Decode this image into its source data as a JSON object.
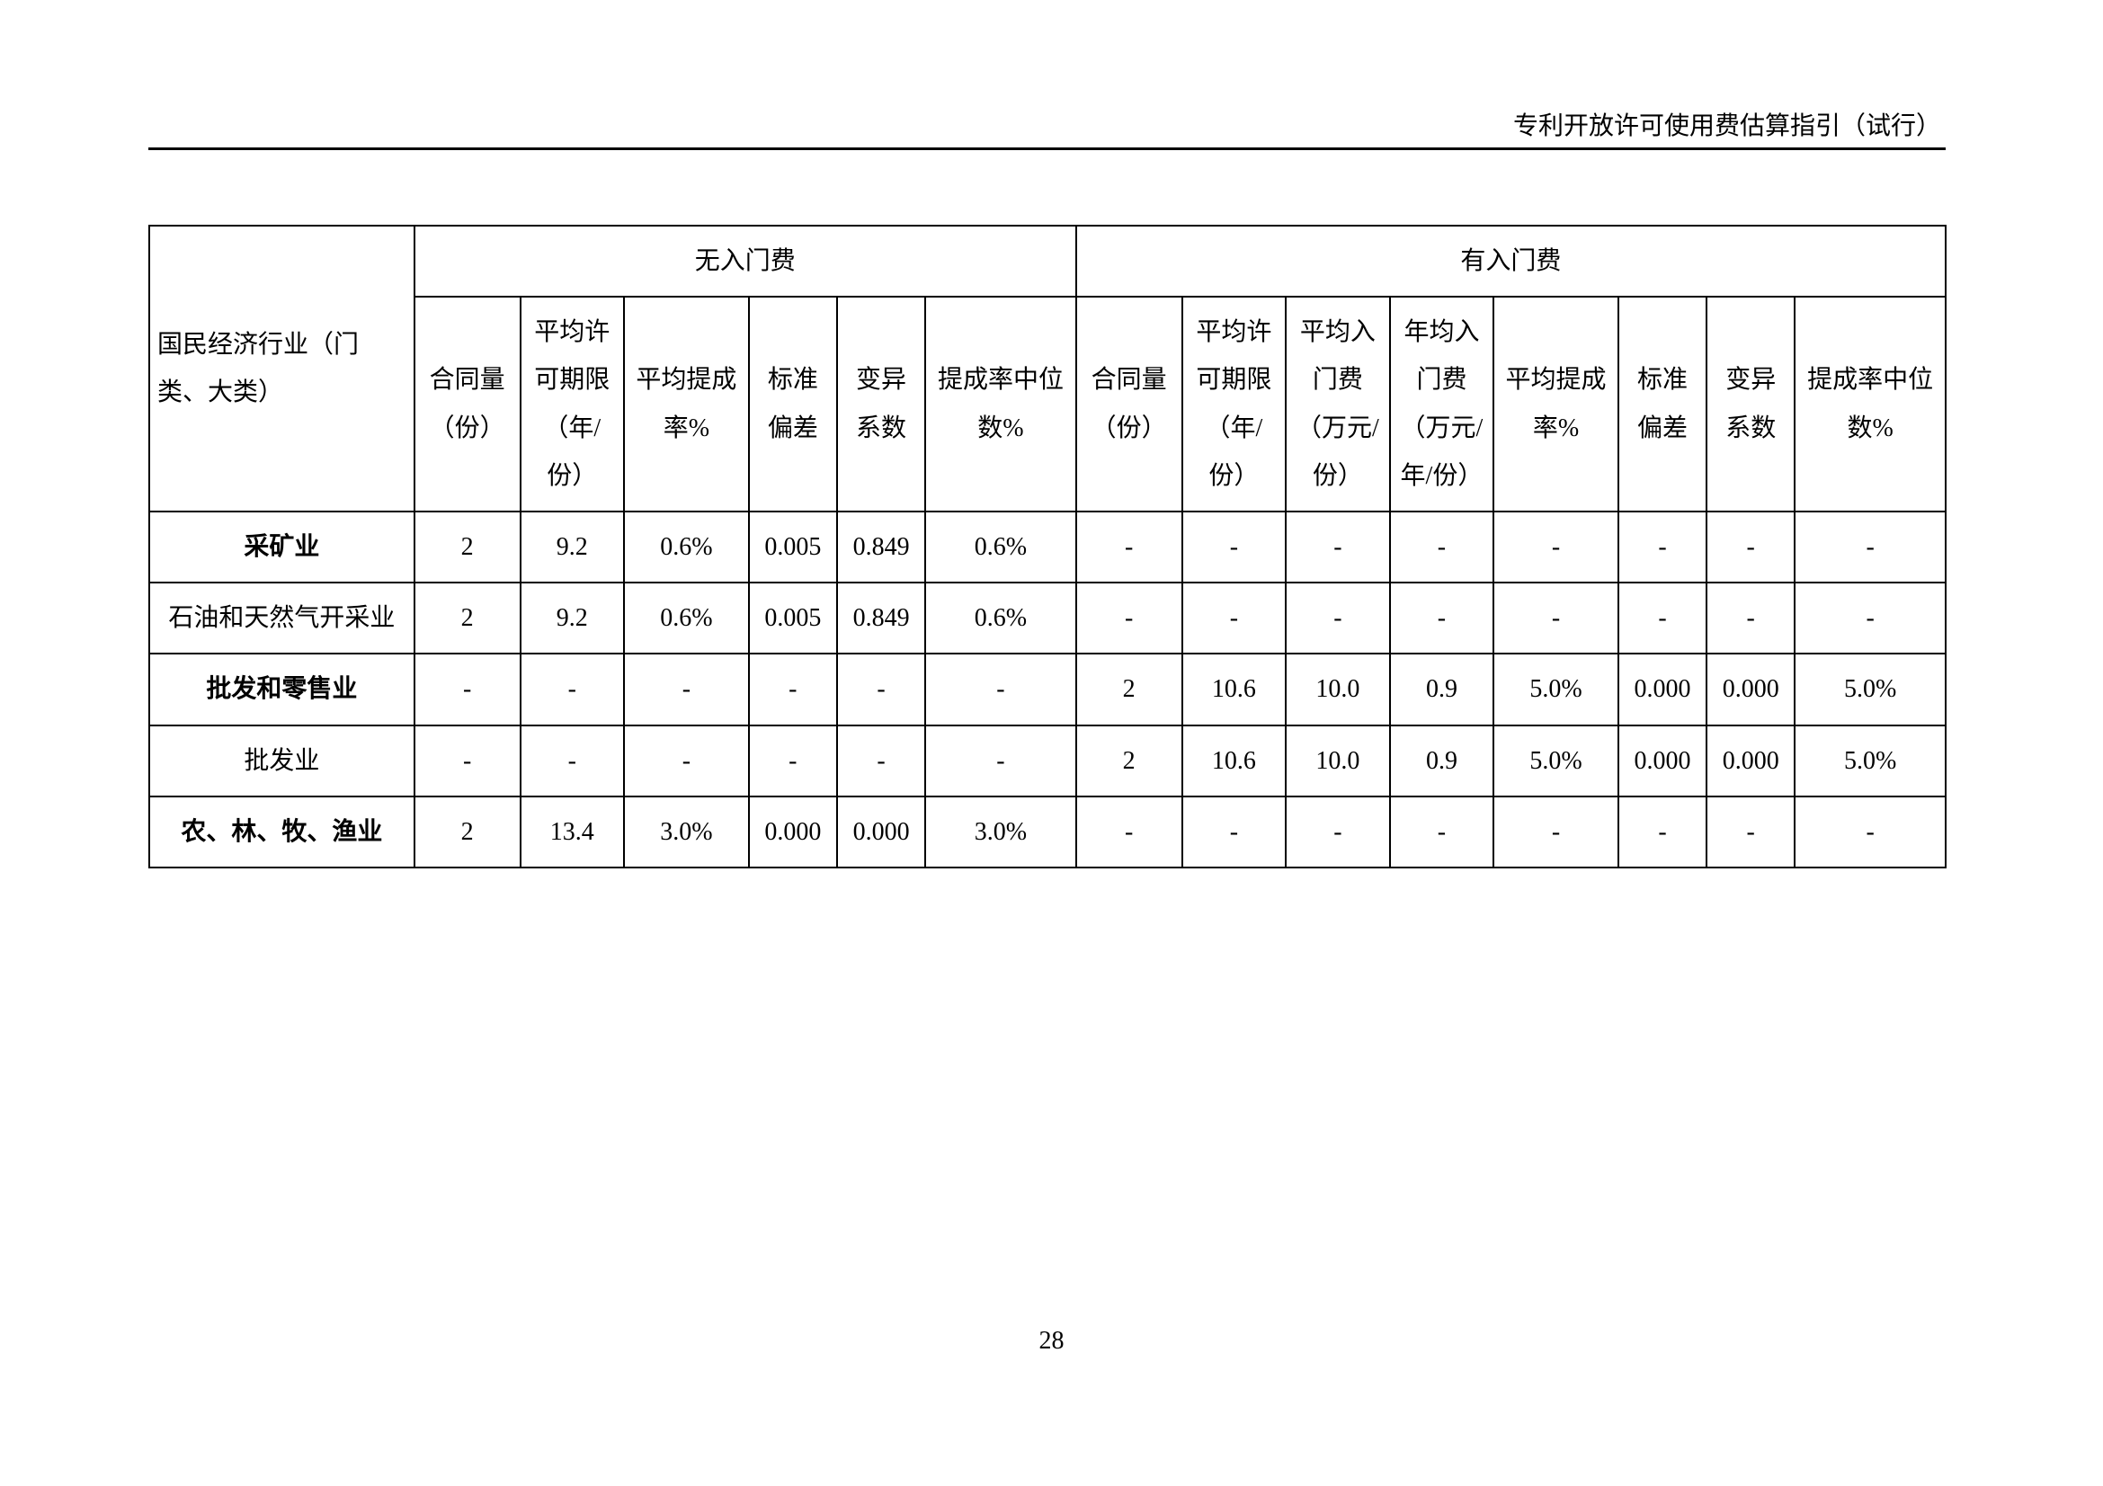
{
  "header": {
    "title": "专利开放许可使用费估算指引（试行）"
  },
  "page_number": "28",
  "table": {
    "type": "table",
    "background_color": "#ffffff",
    "border_color": "#000000",
    "text_color": "#000000",
    "header_fontsize": 28,
    "cell_fontsize": 28,
    "group_headers": {
      "industry": "国民经济行业（门类、大类）",
      "no_entry_fee": "无入门费",
      "with_entry_fee": "有入门费"
    },
    "sub_headers_no_fee": {
      "contracts": "合同量（份）",
      "avg_term": "平均许可期限（年/份）",
      "avg_rate": "平均提成率%",
      "std_dev": "标准偏差",
      "cv": "变异系数",
      "median_rate": "提成率中位数%"
    },
    "sub_headers_fee": {
      "contracts": "合同量（份）",
      "avg_term": "平均许可期限（年/份）",
      "avg_entry": "平均入门费（万元/份）",
      "annual_entry": "年均入门费（万元/年/份）",
      "avg_rate": "平均提成率%",
      "std_dev": "标准偏差",
      "cv": "变异系数",
      "median_rate": "提成率中位数%"
    },
    "rows": [
      {
        "label": "采矿业",
        "bold": true,
        "no_fee": {
          "contracts": "2",
          "avg_term": "9.2",
          "avg_rate": "0.6%",
          "std_dev": "0.005",
          "cv": "0.849",
          "median_rate": "0.6%"
        },
        "fee": {
          "contracts": "-",
          "avg_term": "-",
          "avg_entry": "-",
          "annual_entry": "-",
          "avg_rate": "-",
          "std_dev": "-",
          "cv": "-",
          "median_rate": "-"
        }
      },
      {
        "label": "石油和天然气开采业",
        "bold": false,
        "no_fee": {
          "contracts": "2",
          "avg_term": "9.2",
          "avg_rate": "0.6%",
          "std_dev": "0.005",
          "cv": "0.849",
          "median_rate": "0.6%"
        },
        "fee": {
          "contracts": "-",
          "avg_term": "-",
          "avg_entry": "-",
          "annual_entry": "-",
          "avg_rate": "-",
          "std_dev": "-",
          "cv": "-",
          "median_rate": "-"
        }
      },
      {
        "label": "批发和零售业",
        "bold": true,
        "no_fee": {
          "contracts": "-",
          "avg_term": "-",
          "avg_rate": "-",
          "std_dev": "-",
          "cv": "-",
          "median_rate": "-"
        },
        "fee": {
          "contracts": "2",
          "avg_term": "10.6",
          "avg_entry": "10.0",
          "annual_entry": "0.9",
          "avg_rate": "5.0%",
          "std_dev": "0.000",
          "cv": "0.000",
          "median_rate": "5.0%"
        }
      },
      {
        "label": "批发业",
        "bold": false,
        "no_fee": {
          "contracts": "-",
          "avg_term": "-",
          "avg_rate": "-",
          "std_dev": "-",
          "cv": "-",
          "median_rate": "-"
        },
        "fee": {
          "contracts": "2",
          "avg_term": "10.6",
          "avg_entry": "10.0",
          "annual_entry": "0.9",
          "avg_rate": "5.0%",
          "std_dev": "0.000",
          "cv": "0.000",
          "median_rate": "5.0%"
        }
      },
      {
        "label": "农、林、牧、渔业",
        "bold": true,
        "no_fee": {
          "contracts": "2",
          "avg_term": "13.4",
          "avg_rate": "3.0%",
          "std_dev": "0.000",
          "cv": "0.000",
          "median_rate": "3.0%"
        },
        "fee": {
          "contracts": "-",
          "avg_term": "-",
          "avg_entry": "-",
          "annual_entry": "-",
          "avg_rate": "-",
          "std_dev": "-",
          "cv": "-",
          "median_rate": "-"
        }
      }
    ]
  }
}
